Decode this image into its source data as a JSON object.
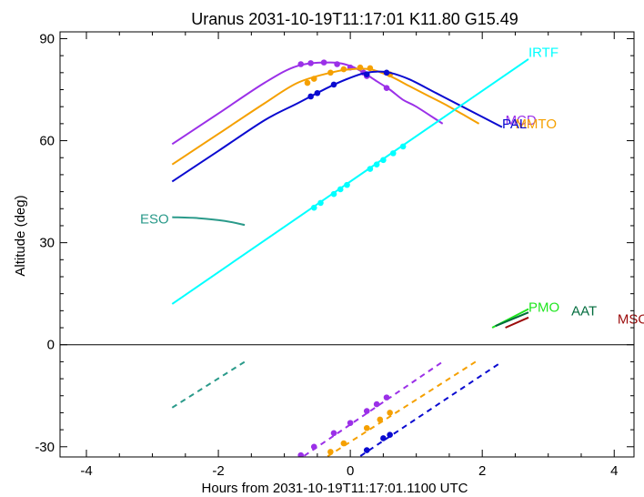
{
  "chart_data": {
    "type": "line",
    "title": "Uranus 2031-10-19T11:17:01  K11.80  G15.49",
    "xlabel": "Hours from 2031-10-19T11:17:01.1100 UTC",
    "ylabel": "Altitude (deg)",
    "xlim": [
      -4.4,
      4.3
    ],
    "ylim": [
      -33,
      92
    ],
    "xticks": [
      -4,
      -2,
      0,
      2,
      4
    ],
    "yticks": [
      -30,
      0,
      30,
      60,
      90
    ],
    "xtick_labels": [
      "-4",
      "-2",
      "0",
      "2",
      "4"
    ],
    "ytick_labels": [
      "-30",
      "0",
      "30",
      "60",
      "90"
    ],
    "zero_line": 0,
    "grid": false,
    "legend": "labels at curve ends",
    "series": [
      {
        "name": "MCD",
        "color": "#9b30e8",
        "label_at": [
          2.35,
          66
        ],
        "altitude": {
          "x": [
            -2.7,
            -2.0,
            -1.3,
            -0.8,
            -0.3,
            0.0,
            0.2,
            0.4,
            0.6,
            0.8,
            1.0,
            1.4
          ],
          "y": [
            59,
            68,
            77,
            82,
            83,
            82,
            80,
            77.5,
            75,
            72,
            70,
            65
          ]
        },
        "markers": {
          "x": [
            -0.75,
            -0.6,
            -0.4,
            -0.2,
            0.0,
            0.2,
            0.25,
            0.55
          ],
          "y": [
            82.5,
            82.8,
            83.0,
            82.5,
            81.5,
            80.0,
            79.0,
            75.5
          ]
        },
        "dashed": {
          "x": [
            -0.95,
            1.4
          ],
          "y": [
            -36,
            -5
          ]
        },
        "dashed_markers": {
          "x": [
            -0.75,
            -0.55,
            -0.25,
            0.0,
            0.25,
            0.4,
            0.55
          ],
          "y": [
            -32.5,
            -30,
            -26,
            -23,
            -19.5,
            -17.5,
            -15.5
          ]
        }
      },
      {
        "name": "MMTO",
        "color": "#f5a000",
        "label_at": [
          2.5,
          65
        ],
        "altitude": {
          "x": [
            -2.7,
            -2.0,
            -1.3,
            -0.8,
            -0.3,
            0.0,
            0.3,
            0.6,
            0.9,
            1.2,
            1.5,
            1.95
          ],
          "y": [
            53,
            62,
            71,
            77,
            80,
            81,
            81,
            79,
            76,
            73,
            70,
            65
          ]
        },
        "markers": {
          "x": [
            -0.65,
            -0.55,
            -0.3,
            -0.1,
            0.15,
            0.3,
            0.6
          ],
          "y": [
            77.0,
            78.2,
            80.0,
            81.0,
            81.5,
            81.3,
            79.5
          ]
        },
        "dashed": {
          "x": [
            -0.6,
            1.9
          ],
          "y": [
            -36,
            -5
          ]
        },
        "dashed_markers": {
          "x": [
            -0.3,
            -0.1,
            0.25,
            0.45,
            0.6
          ],
          "y": [
            -31.5,
            -29,
            -24.5,
            -22,
            -20
          ]
        }
      },
      {
        "name": "PAL",
        "color": "#0a0ad0",
        "label_at": [
          2.3,
          65
        ],
        "altitude": {
          "x": [
            -2.7,
            -2.0,
            -1.3,
            -0.8,
            -0.3,
            0.0,
            0.2,
            0.4,
            0.6,
            0.9,
            1.3,
            1.7,
            2.3
          ],
          "y": [
            48,
            57,
            66,
            71,
            76,
            78.5,
            79.8,
            80.3,
            80.0,
            78,
            74,
            70,
            64
          ]
        },
        "markers": {
          "x": [
            -0.6,
            -0.5,
            -0.25,
            0.25,
            0.55
          ],
          "y": [
            73.0,
            74.0,
            76.5,
            79.5,
            80.0
          ]
        },
        "dashed": {
          "x": [
            -0.1,
            2.3
          ],
          "y": [
            -36,
            -5
          ]
        },
        "dashed_markers": {
          "x": [
            0.25,
            0.5,
            0.6
          ],
          "y": [
            -31,
            -27.5,
            -26.5
          ]
        }
      },
      {
        "name": "IRTF",
        "color": "#00ffff",
        "label_at": [
          2.7,
          86
        ],
        "altitude": {
          "x": [
            -2.7,
            2.7
          ],
          "y": [
            12,
            84
          ]
        },
        "markers": {
          "x": [
            -0.55,
            -0.45,
            -0.25,
            -0.15,
            -0.05,
            0.3,
            0.4,
            0.5,
            0.65,
            0.8
          ],
          "y": [
            40.3,
            41.7,
            44.3,
            45.7,
            47.0,
            51.7,
            53.0,
            54.3,
            56.3,
            58.3
          ]
        }
      },
      {
        "name": "ESO",
        "color": "#2a9a8a",
        "label_at": [
          -2.75,
          37
        ],
        "altitude": {
          "x": [
            -2.7,
            -2.3,
            -1.9,
            -1.6
          ],
          "y": [
            37.5,
            37.2,
            36.4,
            35.2
          ]
        },
        "dashed": {
          "x": [
            -2.7,
            -1.6
          ],
          "y": [
            -18.5,
            -5
          ]
        }
      },
      {
        "name": "PMO",
        "color": "#1fe61f",
        "label_at": [
          2.7,
          11
        ],
        "altitude": {
          "x": [
            2.15,
            2.7
          ],
          "y": [
            5,
            10.5
          ]
        }
      },
      {
        "name": "AAT",
        "color": "#006b3c",
        "label_at": [
          3.35,
          10
        ],
        "altitude": {
          "x": [
            2.2,
            2.7
          ],
          "y": [
            5.5,
            9.5
          ]
        }
      },
      {
        "name": "MSO",
        "color": "#9b0a0a",
        "label_at": [
          4.05,
          7.5
        ],
        "altitude": {
          "x": [
            2.35,
            2.7
          ],
          "y": [
            5,
            8
          ]
        }
      }
    ]
  }
}
